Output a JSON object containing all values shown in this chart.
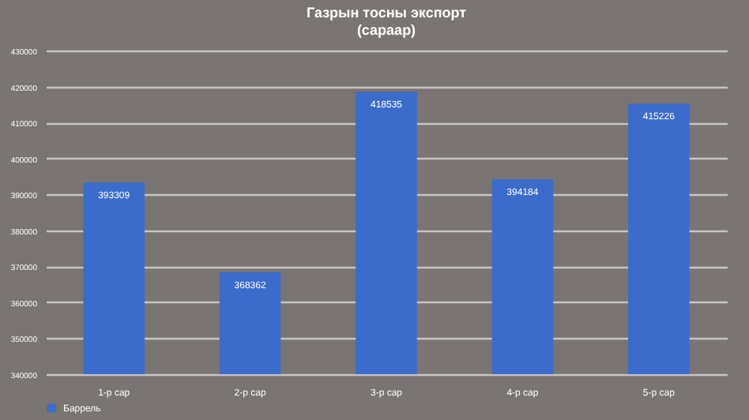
{
  "chart_data": {
    "type": "bar",
    "title": "Газрын тосны экспорт\n(сараар)",
    "categories": [
      "1-р сар",
      "2-р сар",
      "3-р сар",
      "4-р сар",
      "5-р сар"
    ],
    "series": [
      {
        "name": "Баррель",
        "color": "#3b6ccc",
        "values": [
          393309,
          368362,
          418535,
          394184,
          415226
        ]
      }
    ],
    "ylim": [
      340000,
      430000
    ],
    "yticks": [
      340000,
      350000,
      360000,
      370000,
      380000,
      390000,
      400000,
      410000,
      420000,
      430000
    ],
    "grid": "y",
    "legend": "bottom",
    "data_labels": true
  }
}
